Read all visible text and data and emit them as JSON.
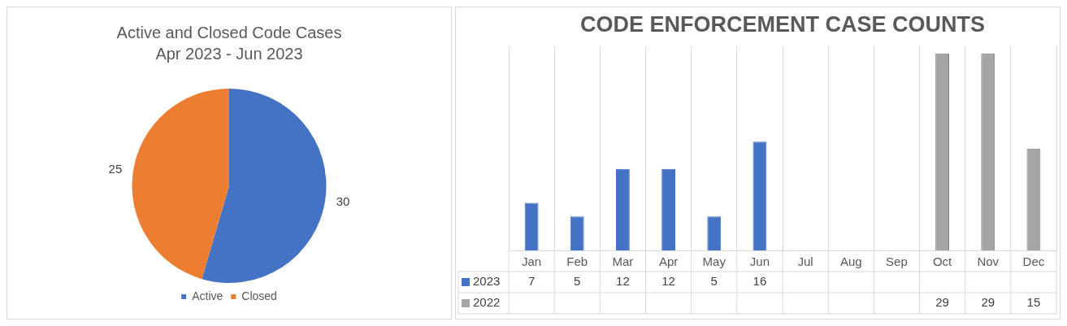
{
  "chart_data": [
    {
      "type": "pie",
      "title": "Active and Closed Code Cases",
      "subtitle": "Apr 2023 - Jun 2023",
      "categories": [
        "Active",
        "Closed"
      ],
      "values": [
        30,
        25
      ],
      "colors": [
        "#4472c4",
        "#ed7d31"
      ],
      "data_labels": true,
      "legend": "bottom"
    },
    {
      "type": "bar",
      "title": "CODE ENFORCEMENT CASE COUNTS",
      "categories": [
        "Jan",
        "Feb",
        "Mar",
        "Apr",
        "May",
        "Jun",
        "Jul",
        "Aug",
        "Sep",
        "Oct",
        "Nov",
        "Dec"
      ],
      "series": [
        {
          "name": "2023",
          "color": "#4472c4",
          "values": [
            7,
            5,
            12,
            12,
            5,
            16,
            null,
            null,
            null,
            null,
            null,
            null
          ]
        },
        {
          "name": "2022",
          "color": "#a5a5a5",
          "values": [
            null,
            null,
            null,
            null,
            null,
            null,
            null,
            null,
            null,
            29,
            29,
            15
          ]
        }
      ],
      "data_labels": true,
      "grid": "x",
      "legend": "bottom"
    }
  ]
}
